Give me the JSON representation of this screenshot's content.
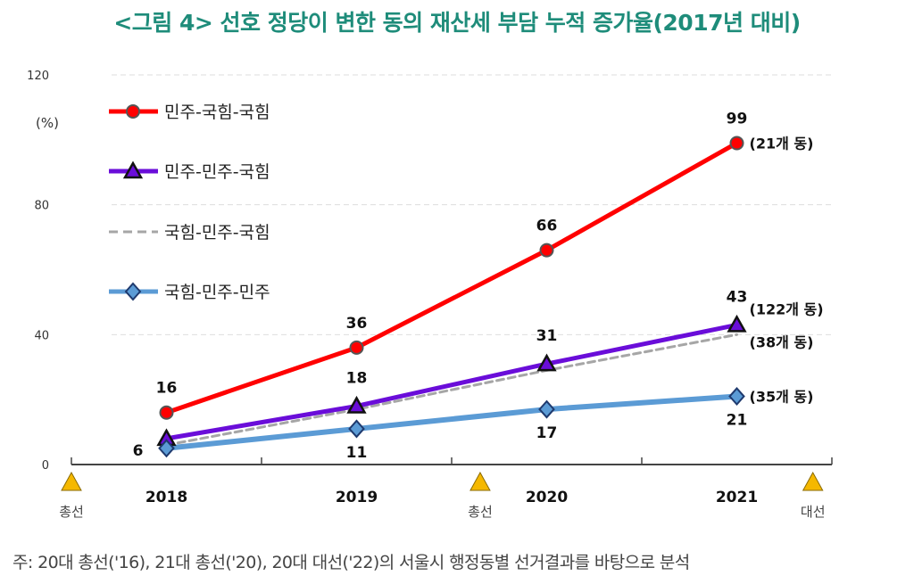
{
  "chart_data": {
    "type": "line",
    "title": "<그림 4> 선호 정당이 변한 동의 재산세 부담 누적 증가율(2017년 대비)",
    "ylabel": "(%)",
    "ylim": [
      0,
      120
    ],
    "yticks": [
      0,
      40,
      80,
      120
    ],
    "categories": [
      "2018",
      "2019",
      "2020",
      "2021"
    ],
    "grid": true,
    "legend_position": "top-left",
    "series": [
      {
        "name": "민주-국힘-국힘",
        "color": "#ff0000",
        "marker": "circle",
        "values": [
          16,
          36,
          66,
          99
        ],
        "labels": [
          "16",
          "36",
          "66",
          "99"
        ],
        "count_label": "(21개 동)"
      },
      {
        "name": "민주-민주-국힘",
        "color": "#6a0dd9",
        "marker": "triangle",
        "values": [
          8,
          18,
          31,
          43
        ],
        "labels": [
          "",
          "18",
          "31",
          "43"
        ],
        "count_label": "(122개 동)"
      },
      {
        "name": "국힘-민주-국힘",
        "color": "#a6a6a6",
        "marker": "none",
        "dashed": true,
        "values": [
          6,
          17,
          29,
          40
        ],
        "labels": [
          "6",
          "",
          "",
          ""
        ],
        "count_label": "(38개 동)"
      },
      {
        "name": "국힘-민주-민주",
        "color": "#5b9bd5",
        "marker": "diamond",
        "values": [
          5,
          11,
          17,
          21
        ],
        "labels": [
          "",
          "11",
          "17",
          "21"
        ],
        "count_label": "(35개 동)"
      }
    ],
    "events": [
      {
        "label": "총선",
        "position": 2017.5
      },
      {
        "label": "총선",
        "position": 2019.65
      },
      {
        "label": "대선",
        "position": 2021.4
      }
    ],
    "note": "주: 20대 총선('16), 21대 총선('20), 20대 대선('22)의 서울시 행정동별 선거결과를 바탕으로 분석"
  }
}
